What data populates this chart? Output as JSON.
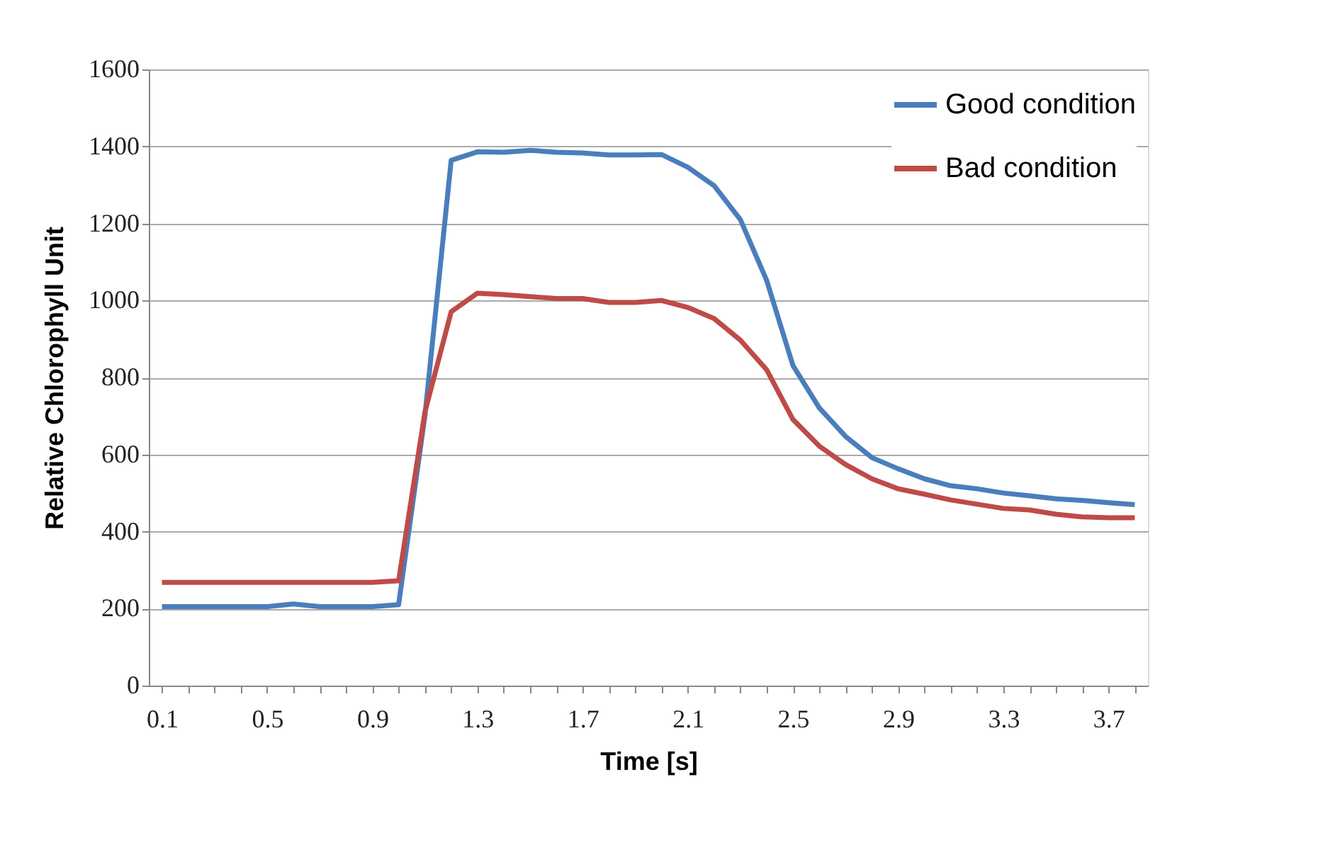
{
  "chart_data": {
    "type": "line",
    "xlabel": "Time [s]",
    "ylabel": "Relative Chlorophyll Unit",
    "categories": [
      "0.1",
      null,
      null,
      null,
      "0.5",
      null,
      null,
      null,
      "0.9",
      null,
      null,
      null,
      "1.3",
      null,
      null,
      null,
      "1.7",
      null,
      null,
      null,
      "2.1",
      null,
      null,
      null,
      "2.5",
      null,
      null,
      null,
      "2.9",
      null,
      null,
      null,
      "3.3",
      null,
      null,
      null,
      "3.7",
      null
    ],
    "series": [
      {
        "name": "Good condition",
        "color": "#4a7ebb",
        "values": [
          205,
          205,
          205,
          205,
          205,
          212,
          205,
          205,
          205,
          210,
          700,
          1364,
          1386,
          1385,
          1390,
          1385,
          1383,
          1378,
          1378,
          1379,
          1346,
          1298,
          1210,
          1052,
          831,
          721,
          647,
          592,
          563,
          537,
          519,
          511,
          500,
          493,
          485,
          481,
          475,
          470
        ]
      },
      {
        "name": "Bad condition",
        "color": "#be4b48",
        "values": [
          268,
          268,
          268,
          268,
          268,
          268,
          268,
          268,
          268,
          272,
          710,
          971,
          1019,
          1015,
          1010,
          1005,
          1005,
          995,
          995,
          1000,
          982,
          953,
          897,
          820,
          691,
          622,
          574,
          537,
          511,
          497,
          482,
          471,
          460,
          456,
          445,
          438,
          436,
          436
        ]
      }
    ],
    "ylim": [
      0,
      1600
    ],
    "yticks": [
      0,
      200,
      400,
      600,
      800,
      1000,
      1200,
      1400,
      1600
    ],
    "grid": "y",
    "legend": "top right",
    "marker": "none",
    "line_style": "solid"
  }
}
